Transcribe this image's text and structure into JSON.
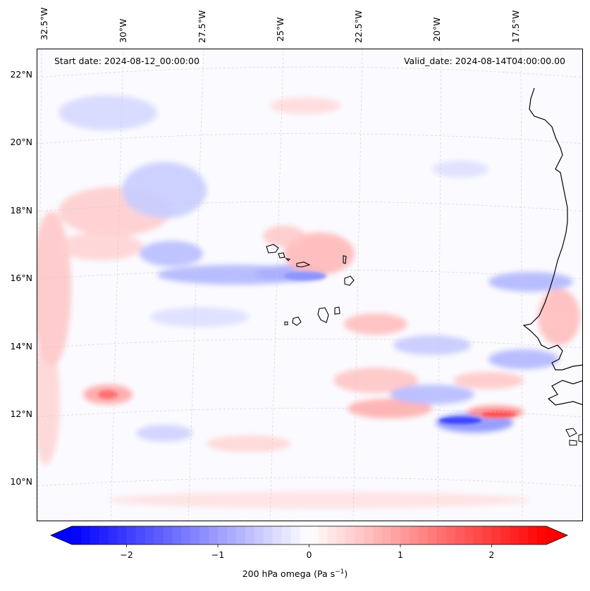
{
  "map": {
    "start_date": "Start date: 2024-08-12_00:00:00",
    "valid_date": "Valid_date: 2024-08-14T04:00:00.00",
    "lon_labels": [
      "32.5°W",
      "30°W",
      "27.5°W",
      "25°W",
      "22.5°W",
      "20°W",
      "17.5°W"
    ],
    "lat_labels": [
      "22°N",
      "20°N",
      "18°N",
      "16°N",
      "14°N",
      "12°N",
      "10°N"
    ],
    "coastline_color": "#000000",
    "grid_color": "#cccccc"
  },
  "colorbar": {
    "title_prefix": "200 hPa omega (Pa s",
    "title_sup": "−1",
    "title_suffix": ")",
    "ticks": [
      "−2",
      "−1",
      "0",
      "1",
      "2"
    ],
    "tick_values": [
      -2,
      -1,
      0,
      1,
      2
    ],
    "vmin": -2.6,
    "vmax": 2.6,
    "cmap": "bwr",
    "neg_color": "#0000ff",
    "pos_color": "#ff0000",
    "mid_color": "#ffffff"
  }
}
